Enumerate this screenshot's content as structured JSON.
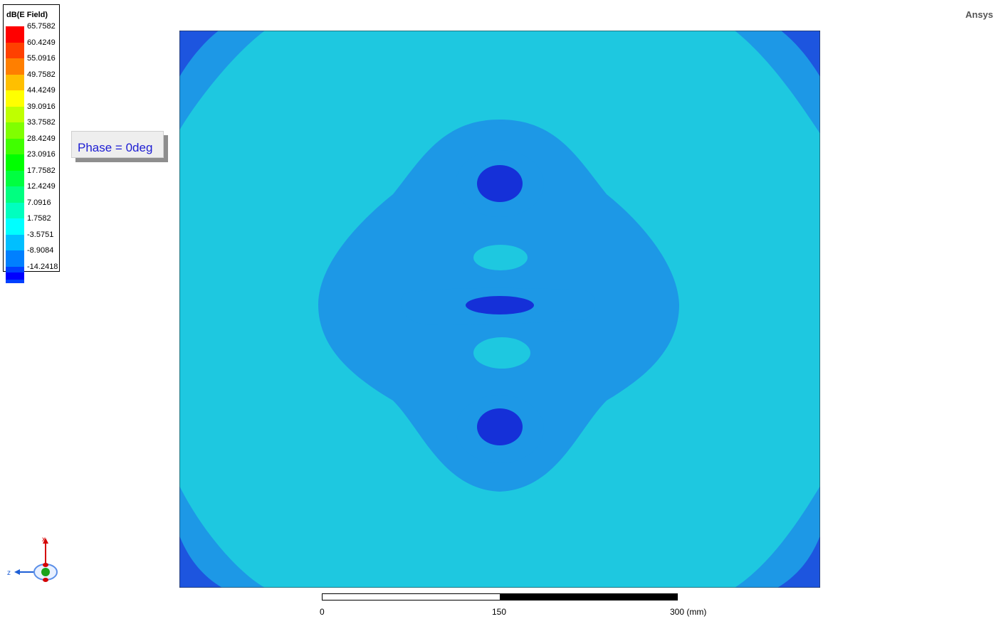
{
  "brand": "Ansys",
  "legend": {
    "title": "dB(E Field)",
    "levels": [
      {
        "value": "65.7582",
        "color": "#ff0000"
      },
      {
        "value": "60.4249",
        "color": "#ff4000"
      },
      {
        "value": "55.0916",
        "color": "#ff7f00"
      },
      {
        "value": "49.7582",
        "color": "#ffbf00"
      },
      {
        "value": "44.4249",
        "color": "#ffff00"
      },
      {
        "value": "39.0916",
        "color": "#bfff00"
      },
      {
        "value": "33.7582",
        "color": "#80ff00"
      },
      {
        "value": "28.4249",
        "color": "#40ff00"
      },
      {
        "value": "23.0916",
        "color": "#00ff00"
      },
      {
        "value": "17.7582",
        "color": "#00ff40"
      },
      {
        "value": "12.4249",
        "color": "#00ff80"
      },
      {
        "value": "7.0916",
        "color": "#00ffbf"
      },
      {
        "value": "1.7582",
        "color": "#00ffff"
      },
      {
        "value": "-3.5751",
        "color": "#00bfff"
      },
      {
        "value": "-8.9084",
        "color": "#0080ff"
      },
      {
        "value": "-14.2418",
        "color": "#0040ff"
      }
    ],
    "bottom_color": "#0000ff"
  },
  "phase_label": "Phase = 0deg",
  "plot_colors": {
    "field_light": "#1ec8e0",
    "field_mid": "#1d98e6",
    "field_dark": "#1d55df",
    "field_darkest": "#1530d8"
  },
  "scale": {
    "labels": [
      "0",
      "150",
      "300 (mm)"
    ]
  },
  "axes": {
    "x_label": "x",
    "z_label": "z"
  }
}
